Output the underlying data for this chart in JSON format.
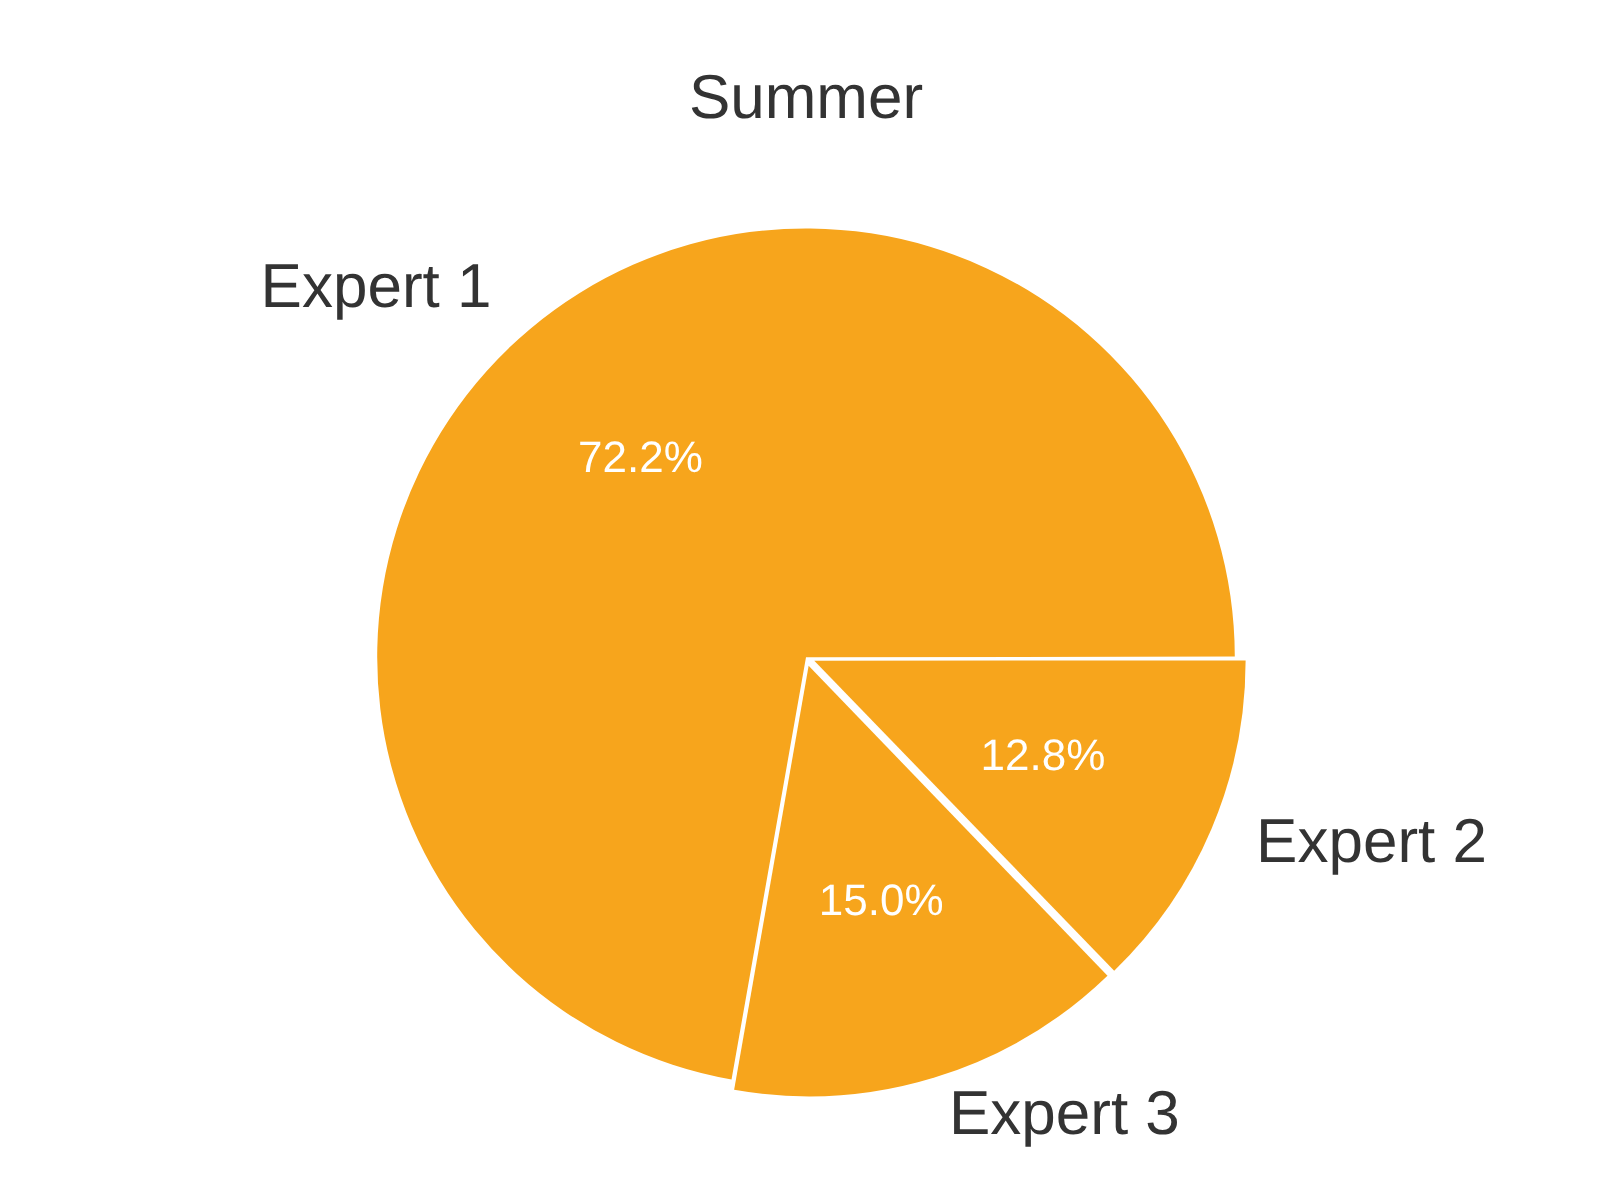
{
  "chart_data": {
    "type": "pie",
    "title": "Summer",
    "categories": [
      "Expert 1",
      "Expert 2",
      "Expert 3"
    ],
    "values": [
      72.2,
      12.8,
      15.0
    ],
    "colors": [
      "#f7a51c",
      "#f7a51c",
      "#f7a51c"
    ],
    "value_labels": [
      "72.2%",
      "12.8%",
      "15.0%"
    ],
    "legend": false
  }
}
